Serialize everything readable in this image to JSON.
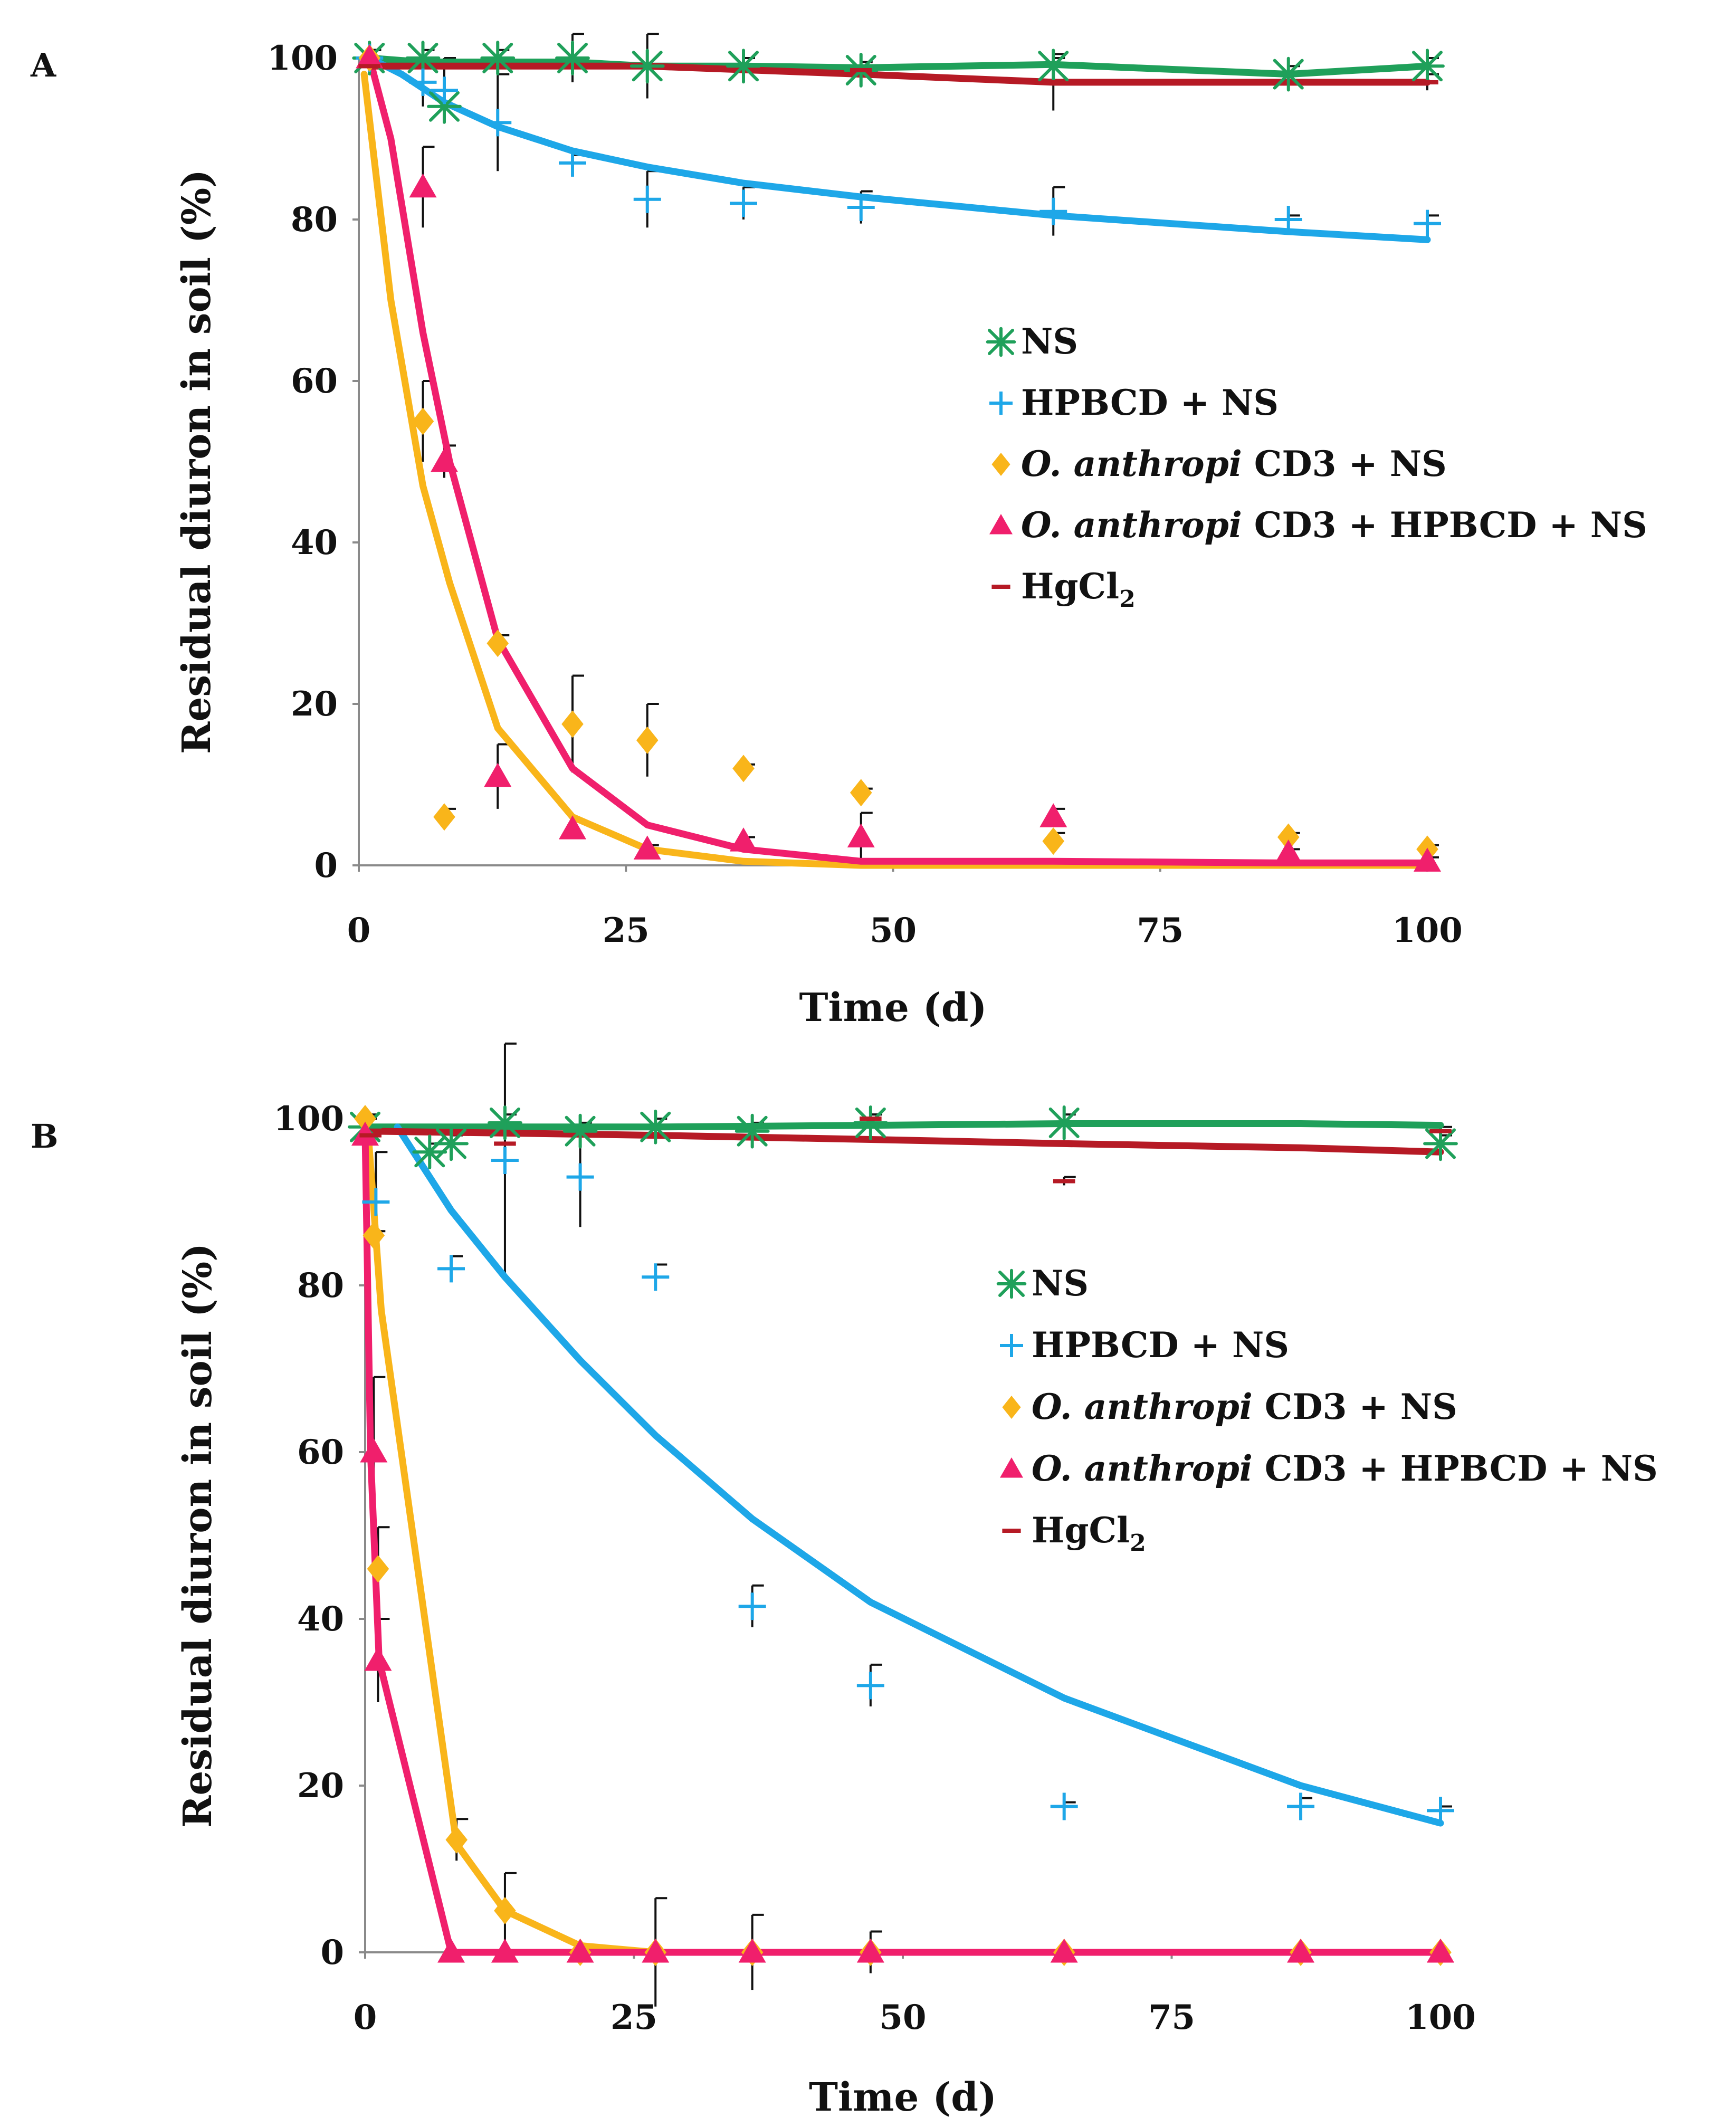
{
  "chart_data": [
    {
      "panel": "A",
      "type": "line",
      "xlabel": "Time (d)",
      "ylabel": "Residual diuron in soil (%)",
      "xlim": [
        0,
        100
      ],
      "ylim": [
        0,
        100
      ],
      "xticks": [
        0,
        25,
        50,
        75,
        100
      ],
      "yticks": [
        0,
        20,
        40,
        60,
        80,
        100
      ],
      "legend_position": "right-middle",
      "series": [
        {
          "name": "NS",
          "color": "#1fa05a",
          "marker": "asterisk",
          "points": [
            {
              "x": 1,
              "y": 100,
              "err": 1
            },
            {
              "x": 6,
              "y": 100,
              "err": 1
            },
            {
              "x": 8,
              "y": 94,
              "err": 2
            },
            {
              "x": 13,
              "y": 100,
              "err": 1
            },
            {
              "x": 20,
              "y": 100,
              "err": 3
            },
            {
              "x": 27,
              "y": 99,
              "err": 4
            },
            {
              "x": 36,
              "y": 99,
              "err": 1
            },
            {
              "x": 47,
              "y": 98.5,
              "err": 1
            },
            {
              "x": 65,
              "y": 99,
              "err": 1
            },
            {
              "x": 87,
              "y": 98,
              "err": 1
            },
            {
              "x": 100,
              "y": 99,
              "err": 1
            }
          ],
          "fit": [
            [
              1,
              100
            ],
            [
              6,
              99.5
            ],
            [
              13,
              99.5
            ],
            [
              20,
              99.5
            ],
            [
              27,
              99
            ],
            [
              36,
              99
            ],
            [
              47,
              98.8
            ],
            [
              65,
              99.2
            ],
            [
              87,
              98
            ],
            [
              100,
              99
            ]
          ]
        },
        {
          "name": "HPBCD + NS",
          "color": "#1ea7e8",
          "marker": "plus",
          "points": [
            {
              "x": 1,
              "y": 100,
              "err": 1
            },
            {
              "x": 6,
              "y": 97,
              "err": 3
            },
            {
              "x": 8,
              "y": 96,
              "err": 4
            },
            {
              "x": 13,
              "y": 92,
              "err": 6
            },
            {
              "x": 20,
              "y": 87,
              "err": 1
            },
            {
              "x": 27,
              "y": 82.5,
              "err": 3.5
            },
            {
              "x": 36,
              "y": 82,
              "err": 2
            },
            {
              "x": 47,
              "y": 81.5,
              "err": 2
            },
            {
              "x": 65,
              "y": 81,
              "err": 3
            },
            {
              "x": 87,
              "y": 80,
              "err": 0.5
            },
            {
              "x": 100,
              "y": 79.5,
              "err": 1
            }
          ],
          "fit": [
            [
              1,
              100
            ],
            [
              4,
              98
            ],
            [
              8,
              94.5
            ],
            [
              13,
              91.5
            ],
            [
              20,
              88.5
            ],
            [
              27,
              86.5
            ],
            [
              36,
              84.5
            ],
            [
              47,
              82.8
            ],
            [
              65,
              80.5
            ],
            [
              87,
              78.5
            ],
            [
              100,
              77.5
            ]
          ]
        },
        {
          "name": "O. anthropi CD3 + NS",
          "name_italic": "O. anthropi",
          "name_rest": " CD3 + NS",
          "color": "#f9b51a",
          "marker": "diamond",
          "points": [
            {
              "x": 1,
              "y": 100,
              "err": 1
            },
            {
              "x": 6,
              "y": 55,
              "err": 5
            },
            {
              "x": 8,
              "y": 6,
              "err": 1
            },
            {
              "x": 13,
              "y": 27.5,
              "err": 1
            },
            {
              "x": 20,
              "y": 17.5,
              "err": 6
            },
            {
              "x": 27,
              "y": 15.5,
              "err": 4.5
            },
            {
              "x": 36,
              "y": 12,
              "err": 0.5
            },
            {
              "x": 47,
              "y": 9,
              "err": 0.5
            },
            {
              "x": 65,
              "y": 3,
              "err": 1
            },
            {
              "x": 87,
              "y": 3.5,
              "err": 0.5
            },
            {
              "x": 100,
              "y": 2,
              "err": 0.5
            }
          ],
          "fit": [
            [
              0.5,
              98
            ],
            [
              3,
              70
            ],
            [
              6,
              47
            ],
            [
              8.5,
              35
            ],
            [
              13,
              17
            ],
            [
              20,
              6
            ],
            [
              27,
              2
            ],
            [
              36,
              0.5
            ],
            [
              47,
              0
            ],
            [
              65,
              0
            ],
            [
              87,
              0
            ],
            [
              100,
              0
            ]
          ]
        },
        {
          "name": "O. anthropi CD3 + HPBCD + NS",
          "name_italic": "O. anthropi",
          "name_rest": " CD3 + HPBCD + NS",
          "color": "#f01f6c",
          "marker": "triangle",
          "points": [
            {
              "x": 1,
              "y": 100,
              "err": 1
            },
            {
              "x": 6,
              "y": 84,
              "err": 5
            },
            {
              "x": 8,
              "y": 50,
              "err": 2
            },
            {
              "x": 13,
              "y": 11,
              "err": 4
            },
            {
              "x": 20,
              "y": 4.5,
              "err": 1
            },
            {
              "x": 27,
              "y": 2,
              "err": 0.5
            },
            {
              "x": 36,
              "y": 3,
              "err": 0.5
            },
            {
              "x": 47,
              "y": 3.5,
              "err": 3
            },
            {
              "x": 65,
              "y": 6,
              "err": 1
            },
            {
              "x": 87,
              "y": 1.5,
              "err": 0.5
            },
            {
              "x": 100,
              "y": 0.5,
              "err": 0.5
            }
          ],
          "fit": [
            [
              1,
              100
            ],
            [
              3,
              90
            ],
            [
              6,
              66
            ],
            [
              8.5,
              50
            ],
            [
              13,
              28
            ],
            [
              20,
              12
            ],
            [
              27,
              5
            ],
            [
              36,
              2
            ],
            [
              47,
              0.5
            ],
            [
              65,
              0.5
            ],
            [
              87,
              0.3
            ],
            [
              100,
              0.3
            ]
          ]
        },
        {
          "name": "HgCl₂",
          "name_base": "HgCl",
          "name_sub": "2",
          "color": "#b61a25",
          "marker": "dash",
          "points": [
            {
              "x": 1,
              "y": 99,
              "err": 1
            },
            {
              "x": 47,
              "y": 98.5,
              "err": 0.5
            },
            {
              "x": 65,
              "y": 97,
              "err": 3.5
            },
            {
              "x": 100,
              "y": 97,
              "err": 1
            }
          ],
          "fit": [
            [
              1,
              99
            ],
            [
              27,
              99
            ],
            [
              47,
              98
            ],
            [
              65,
              97
            ],
            [
              87,
              97
            ],
            [
              100,
              97
            ]
          ]
        }
      ]
    },
    {
      "panel": "B",
      "type": "line",
      "xlabel": "Time (d)",
      "ylabel": "Residual diuron in soil (%)",
      "xlim": [
        0,
        100
      ],
      "ylim": [
        0,
        100
      ],
      "xticks": [
        0,
        25,
        50,
        75,
        100
      ],
      "yticks": [
        0,
        20,
        40,
        60,
        80,
        100
      ],
      "legend_position": "right-middle",
      "series": [
        {
          "name": "NS",
          "color": "#1fa05a",
          "marker": "asterisk",
          "points": [
            {
              "x": 0,
              "y": 99,
              "err": 1
            },
            {
              "x": 6,
              "y": 96,
              "err": 1
            },
            {
              "x": 8,
              "y": 97,
              "err": 1
            },
            {
              "x": 13,
              "y": 99.5,
              "err": 1
            },
            {
              "x": 20,
              "y": 98.5,
              "err": 1
            },
            {
              "x": 27,
              "y": 99,
              "err": 1
            },
            {
              "x": 36,
              "y": 98.5,
              "err": 1
            },
            {
              "x": 47,
              "y": 99.5,
              "err": 1
            },
            {
              "x": 65,
              "y": 99.5,
              "err": 1
            },
            {
              "x": 100,
              "y": 97,
              "err": 1
            }
          ],
          "fit": [
            [
              0,
              99
            ],
            [
              13,
              99
            ],
            [
              27,
              99
            ],
            [
              47,
              99.2
            ],
            [
              65,
              99.4
            ],
            [
              87,
              99.4
            ],
            [
              100,
              99.2
            ]
          ]
        },
        {
          "name": "HPBCD + NS",
          "color": "#1ea7e8",
          "marker": "plus",
          "points": [
            {
              "x": 1,
              "y": 90,
              "err": 6
            },
            {
              "x": 8,
              "y": 82,
              "err": 1.5
            },
            {
              "x": 13,
              "y": 95,
              "err": 14
            },
            {
              "x": 20,
              "y": 93,
              "err": 6
            },
            {
              "x": 27,
              "y": 81,
              "err": 1.5
            },
            {
              "x": 36,
              "y": 41.5,
              "err": 2.5
            },
            {
              "x": 47,
              "y": 32,
              "err": 2.5
            },
            {
              "x": 65,
              "y": 17.5,
              "err": 0.5
            },
            {
              "x": 87,
              "y": 17.5,
              "err": 1
            },
            {
              "x": 100,
              "y": 17,
              "err": 0.5
            }
          ],
          "fit": [
            [
              3,
              99
            ],
            [
              8,
              89
            ],
            [
              13,
              81
            ],
            [
              20,
              71
            ],
            [
              27,
              62
            ],
            [
              36,
              52
            ],
            [
              47,
              42
            ],
            [
              65,
              30.5
            ],
            [
              87,
              20
            ],
            [
              100,
              15.5
            ]
          ]
        },
        {
          "name": "O. anthropi CD3 + NS",
          "name_italic": "O. anthropi",
          "name_rest": " CD3 + NS",
          "color": "#f9b51a",
          "marker": "diamond",
          "points": [
            {
              "x": 0,
              "y": 100,
              "err": 0.5
            },
            {
              "x": 0.8,
              "y": 86,
              "err": 0.5
            },
            {
              "x": 1.2,
              "y": 46,
              "err": 5
            },
            {
              "x": 8.5,
              "y": 13.5,
              "err": 2.5
            },
            {
              "x": 13,
              "y": 5,
              "err": 4.5
            },
            {
              "x": 20,
              "y": 0,
              "err": 0
            },
            {
              "x": 27,
              "y": 0,
              "err": 6.5
            },
            {
              "x": 36,
              "y": 0,
              "err": 4.5
            },
            {
              "x": 47,
              "y": 0,
              "err": 2.5
            },
            {
              "x": 65,
              "y": 0,
              "err": 0
            },
            {
              "x": 87,
              "y": 0,
              "err": 0
            },
            {
              "x": 100,
              "y": 0,
              "err": 0
            }
          ],
          "fit": [
            [
              0.3,
              98
            ],
            [
              1.5,
              77
            ],
            [
              8.5,
              13
            ],
            [
              13,
              5
            ],
            [
              20,
              0.8
            ],
            [
              27,
              0
            ],
            [
              36,
              0
            ],
            [
              100,
              0
            ]
          ]
        },
        {
          "name": "O. anthropi CD3 + HPBCD + NS",
          "name_italic": "O. anthropi",
          "name_rest": " CD3 + HPBCD + NS",
          "color": "#f01f6c",
          "marker": "triangle",
          "points": [
            {
              "x": 0,
              "y": 98,
              "err": 1
            },
            {
              "x": 0.8,
              "y": 60,
              "err": 9
            },
            {
              "x": 1.2,
              "y": 35,
              "err": 5
            },
            {
              "x": 8,
              "y": 0,
              "err": 0
            },
            {
              "x": 13,
              "y": 0,
              "err": 0
            },
            {
              "x": 20,
              "y": 0,
              "err": 0
            },
            {
              "x": 27,
              "y": 0,
              "err": 0
            },
            {
              "x": 36,
              "y": 0,
              "err": 0
            },
            {
              "x": 47,
              "y": 0,
              "err": 0
            },
            {
              "x": 65,
              "y": 0,
              "err": 0
            },
            {
              "x": 87,
              "y": 0,
              "err": 0
            },
            {
              "x": 100,
              "y": 0,
              "err": 0
            }
          ],
          "fit": [
            [
              0,
              98
            ],
            [
              0.5,
              60
            ],
            [
              1.3,
              35
            ],
            [
              8,
              0
            ],
            [
              100,
              0
            ]
          ]
        },
        {
          "name": "HgCl₂",
          "name_base": "HgCl",
          "name_sub": "2",
          "color": "#b61a25",
          "marker": "dash",
          "points": [
            {
              "x": 0.5,
              "y": 98,
              "err": 1
            },
            {
              "x": 13,
              "y": 97,
              "err": 2
            },
            {
              "x": 47,
              "y": 100,
              "err": 0.5
            },
            {
              "x": 65,
              "y": 92.5,
              "err": 0.5
            },
            {
              "x": 100,
              "y": 98.5,
              "err": 0.5
            }
          ],
          "fit": [
            [
              0.5,
              98.5
            ],
            [
              27,
              98
            ],
            [
              47,
              97.5
            ],
            [
              65,
              97
            ],
            [
              87,
              96.5
            ],
            [
              100,
              96
            ]
          ]
        }
      ]
    }
  ]
}
